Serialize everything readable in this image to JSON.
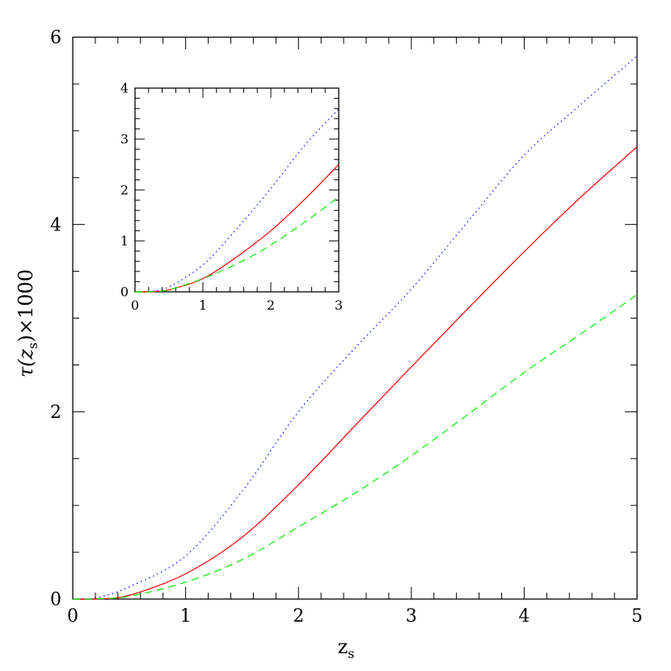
{
  "chart_data": [
    {
      "type": "line",
      "xlabel": "z",
      "xlabel_sub": "s",
      "ylabel": "τ(z",
      "ylabel_sub": "s",
      "ylabel_suffix": ")×1000",
      "xlim": [
        0,
        5
      ],
      "ylim": [
        0,
        6
      ],
      "xticks": [
        "0",
        "1",
        "2",
        "3",
        "4",
        "5"
      ],
      "yticks": [
        "0",
        "2",
        "4",
        "6"
      ],
      "grid": false,
      "x": [
        0,
        0.2,
        0.5,
        1,
        1.5,
        2,
        2.5,
        3,
        3.5,
        4,
        4.5,
        5
      ],
      "series": [
        {
          "color": "#0000ff",
          "style": "dotted",
          "values": [
            0,
            0.01,
            0.13,
            0.46,
            1.15,
            2.0,
            2.68,
            3.31,
            4.03,
            4.74,
            5.28,
            5.8
          ]
        },
        {
          "color": "#ff0000",
          "style": "solid",
          "values": [
            0,
            0.002,
            0.04,
            0.27,
            0.66,
            1.22,
            1.85,
            2.48,
            3.1,
            3.71,
            4.29,
            4.83
          ]
        },
        {
          "color": "#00ee00",
          "style": "dashed",
          "values": [
            0,
            0.002,
            0.03,
            0.18,
            0.42,
            0.77,
            1.13,
            1.53,
            1.97,
            2.42,
            2.83,
            3.25
          ]
        }
      ]
    },
    {
      "type": "line",
      "role": "inset",
      "xlim": [
        0,
        3
      ],
      "ylim": [
        0,
        4
      ],
      "xticks": [
        "0",
        "1",
        "2",
        "3"
      ],
      "yticks": [
        "0",
        "1",
        "2",
        "3",
        "4"
      ],
      "grid": false,
      "x": [
        0,
        0.2,
        0.5,
        1,
        1.5,
        2,
        2.5,
        3
      ],
      "series": [
        {
          "color": "#0000ff",
          "style": "dotted",
          "values": [
            0,
            0.01,
            0.1,
            0.53,
            1.24,
            2.03,
            2.88,
            3.59
          ]
        },
        {
          "color": "#ff0000",
          "style": "solid",
          "values": [
            0,
            0.003,
            0.04,
            0.26,
            0.69,
            1.2,
            1.82,
            2.5
          ]
        },
        {
          "color": "#00ee00",
          "style": "dashed",
          "values": [
            0,
            0.003,
            0.04,
            0.26,
            0.55,
            0.92,
            1.37,
            1.86
          ]
        }
      ]
    }
  ]
}
